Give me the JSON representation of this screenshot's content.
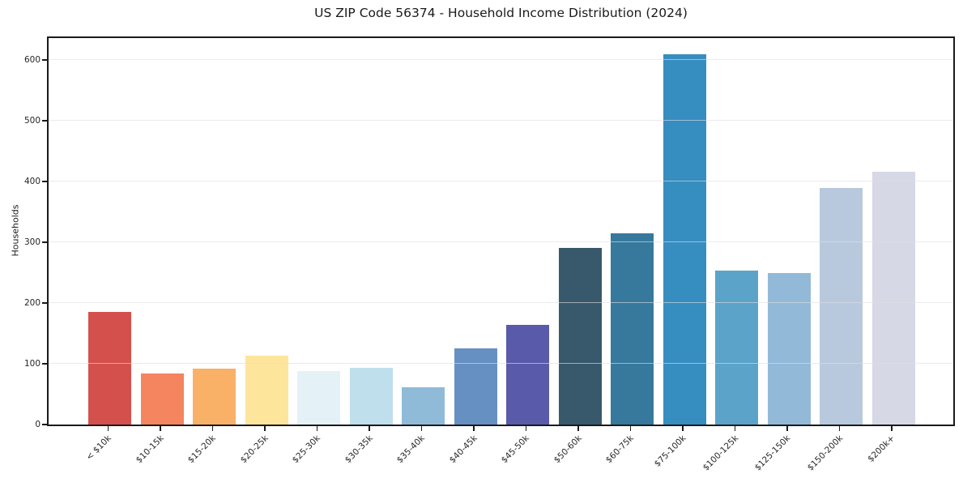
{
  "title": "US ZIP Code 56374 - Household Income Distribution (2024)",
  "chart_data": {
    "type": "bar",
    "title": "US ZIP Code 56374 - Household Income Distribution (2024)",
    "xlabel": "",
    "ylabel": "Households",
    "categories": [
      "< $10k",
      "$10-15k",
      "$15-20k",
      "$20-25k",
      "$25-30k",
      "$30-35k",
      "$35-40k",
      "$40-45k",
      "$45-50k",
      "$50-60k",
      "$60-75k",
      "$75-100k",
      "$100-125k",
      "$125-150k",
      "$150-200k",
      "$200k+"
    ],
    "values": [
      186,
      84,
      92,
      113,
      88,
      94,
      61,
      125,
      164,
      291,
      315,
      609,
      254,
      249,
      389,
      416
    ],
    "bar_colors": [
      "#d4504c",
      "#f4855e",
      "#f9b168",
      "#fde59c",
      "#e4f1f6",
      "#bfdfec",
      "#8fbbd9",
      "#6790c2",
      "#5a5aaa",
      "#38596b",
      "#36799d",
      "#368dbf",
      "#5ba3c9",
      "#93b9d9",
      "#b9c9dd",
      "#d6d8e5"
    ],
    "yticks": [
      0,
      100,
      200,
      300,
      400,
      500,
      600
    ],
    "ylim": [
      0,
      636
    ],
    "grid": "horizontal",
    "gridline_color": "#ececf0",
    "spine_color": "#1a1a1a",
    "background_color": "#ffffff",
    "x_tick_label_rotation_deg": 45,
    "legend": "none"
  }
}
